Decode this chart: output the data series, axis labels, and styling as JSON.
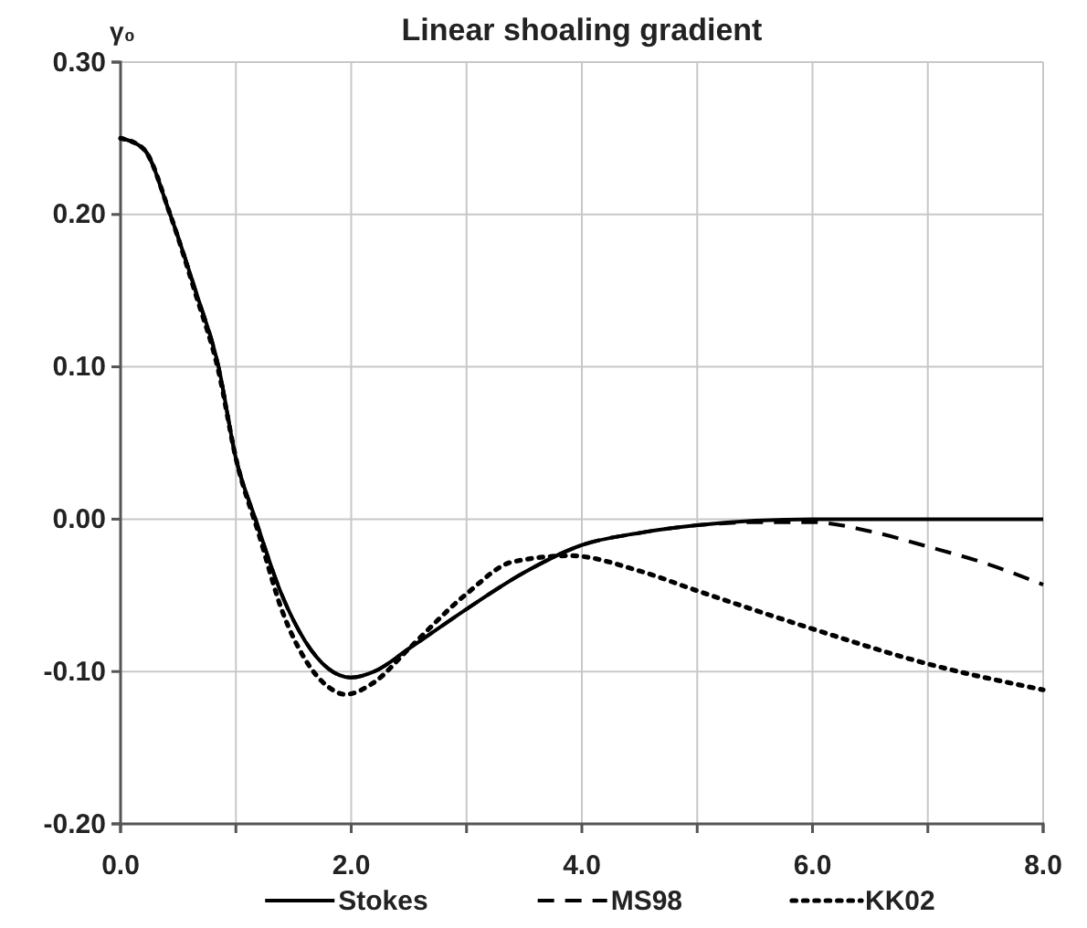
{
  "chart_data": {
    "type": "line",
    "title": "Linear shoaling gradient",
    "ylabel": "γ₀",
    "xlim": [
      0,
      8
    ],
    "xticks": [
      {
        "value": 0,
        "label": "0.0"
      },
      {
        "value": 1,
        "label": null
      },
      {
        "value": 2,
        "label": "2.0"
      },
      {
        "value": 3,
        "label": null
      },
      {
        "value": 4,
        "label": "4.0"
      },
      {
        "value": 5,
        "label": null
      },
      {
        "value": 6,
        "label": "6.0"
      },
      {
        "value": 7,
        "label": null
      },
      {
        "value": 8,
        "label": "8.0"
      }
    ],
    "ylim": [
      -0.2,
      0.3
    ],
    "yticks": [
      {
        "value": -0.2,
        "label": "-0.20"
      },
      {
        "value": -0.1,
        "label": "-0.10"
      },
      {
        "value": 0,
        "label": "0.00"
      },
      {
        "value": 0.1,
        "label": "0.10"
      },
      {
        "value": 0.2,
        "label": "0.20"
      },
      {
        "value": 0.3,
        "label": "0.30"
      }
    ],
    "grid": true,
    "legend": "bottom",
    "series": [
      {
        "name": "Stokes",
        "color": "#000000",
        "line_style": "solid",
        "x": [
          0,
          0.2,
          0.43,
          0.65,
          0.85,
          1.0,
          1.17,
          1.4,
          1.6,
          1.8,
          2.0,
          2.2,
          2.5,
          3.0,
          3.5,
          4.0,
          4.5,
          5.0,
          5.5,
          6.0,
          7.0,
          8.0
        ],
        "values": [
          0.25,
          0.243,
          0.2,
          0.15,
          0.1,
          0.04,
          0,
          -0.05,
          -0.08,
          -0.098,
          -0.104,
          -0.1,
          -0.085,
          -0.059,
          -0.035,
          -0.017,
          -0.009,
          -0.004,
          -0.001,
          0,
          0,
          0
        ]
      },
      {
        "name": "MS98",
        "color": "#000000",
        "line_style": "dashed",
        "x": [
          0,
          0.2,
          0.43,
          0.65,
          0.85,
          1.0,
          1.17,
          1.4,
          1.6,
          1.8,
          2.0,
          2.2,
          2.5,
          3.0,
          3.5,
          4.0,
          4.5,
          5.0,
          5.5,
          6.0,
          6.5,
          7.0,
          7.5,
          8.0
        ],
        "values": [
          0.25,
          0.243,
          0.2,
          0.15,
          0.1,
          0.04,
          0,
          -0.05,
          -0.08,
          -0.098,
          -0.104,
          -0.1,
          -0.085,
          -0.059,
          -0.035,
          -0.017,
          -0.009,
          -0.004,
          -0.002,
          -0.002,
          -0.008,
          -0.018,
          -0.029,
          -0.043
        ]
      },
      {
        "name": "KK02",
        "color": "#000000",
        "line_style": "dotted",
        "x": [
          0,
          0.2,
          0.43,
          0.65,
          0.85,
          1.0,
          1.2,
          1.4,
          1.6,
          1.8,
          1.95,
          2.2,
          2.5,
          3.0,
          3.4,
          3.9,
          4.5,
          5.0,
          6.0,
          7.0,
          8.0
        ],
        "values": [
          0.25,
          0.243,
          0.2,
          0.148,
          0.097,
          0.04,
          -0.01,
          -0.06,
          -0.092,
          -0.11,
          -0.115,
          -0.107,
          -0.085,
          -0.049,
          -0.028,
          -0.024,
          -0.034,
          -0.047,
          -0.072,
          -0.095,
          -0.112
        ]
      }
    ]
  }
}
